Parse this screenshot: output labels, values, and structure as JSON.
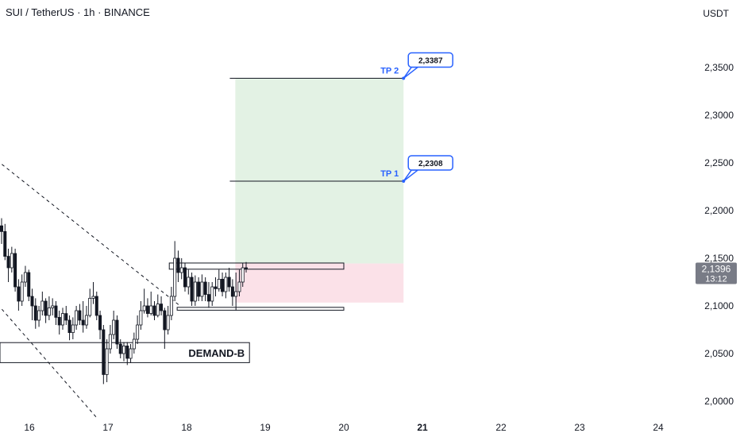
{
  "header": {
    "title": "SUI / TetherUS · 1h · BINANCE",
    "unit": "USDT"
  },
  "colors": {
    "up": "#ffffff",
    "down": "#131722",
    "profit_zone": "#e3f2e4",
    "loss_zone": "#fbe1e8",
    "tp_accent": "#2962ff",
    "price_badge": "#787b86"
  },
  "chart_data": {
    "type": "candlestick",
    "ylim": [
      1.98,
      2.385
    ],
    "y_ticks": [
      "2,0000",
      "2,0500",
      "2,1000",
      "2,1500",
      "2,2000",
      "2,2500",
      "2,3000",
      "2,3500"
    ],
    "y_tick_values": [
      2.0,
      2.05,
      2.1,
      2.15,
      2.2,
      2.25,
      2.3,
      2.35
    ],
    "x_ticks": [
      "16",
      "17",
      "18",
      "19",
      "20",
      "21",
      "22",
      "23",
      "24"
    ],
    "x_bold": "21",
    "current_price": {
      "value": 2.1396,
      "label": "2,1396",
      "countdown": "13:12"
    },
    "targets": [
      {
        "name": "TP 1",
        "value": 2.2308,
        "label": "2,2308"
      },
      {
        "name": "TP 2",
        "value": 2.3387,
        "label": "2,3387"
      }
    ],
    "position": {
      "entry": 2.1445,
      "stop": 2.1035,
      "tp": 2.3387,
      "start_day": 18.62,
      "end_day": 20.76
    },
    "zones": [
      {
        "label": "DEMAND-B",
        "top": 2.0615,
        "bottom": 2.0405,
        "from_day": 15.6,
        "to_day": 18.8
      },
      {
        "label": "",
        "top": 2.145,
        "bottom": 2.1385,
        "from_day": 17.78,
        "to_day": 20.0
      },
      {
        "label": "",
        "top": 2.0985,
        "bottom": 2.0955,
        "from_day": 17.88,
        "to_day": 20.0
      }
    ],
    "channel": [
      {
        "from": [
          15.65,
          2.2485
        ],
        "to": [
          17.91,
          2.1005
        ]
      },
      {
        "from": [
          15.65,
          2.0965
        ],
        "to": [
          16.87,
          1.9815
        ]
      }
    ],
    "candles": [
      [
        2.184,
        2.178,
        2.192,
        2.165
      ],
      [
        2.178,
        2.152,
        2.186,
        2.148
      ],
      [
        2.152,
        2.14,
        2.16,
        2.125
      ],
      [
        2.14,
        2.155,
        2.162,
        2.135
      ],
      [
        2.155,
        2.12,
        2.16,
        2.115
      ],
      [
        2.12,
        2.105,
        2.128,
        2.095
      ],
      [
        2.105,
        2.125,
        2.133,
        2.1
      ],
      [
        2.125,
        2.135,
        2.142,
        2.12
      ],
      [
        2.135,
        2.11,
        2.138,
        2.105
      ],
      [
        2.11,
        2.1,
        2.118,
        2.085
      ],
      [
        2.1,
        2.085,
        2.108,
        2.076
      ],
      [
        2.085,
        2.095,
        2.1,
        2.078
      ],
      [
        2.095,
        2.105,
        2.115,
        2.09
      ],
      [
        2.105,
        2.09,
        2.108,
        2.082
      ],
      [
        2.09,
        2.098,
        2.11,
        2.085
      ],
      [
        2.098,
        2.1,
        2.108,
        2.09
      ],
      [
        2.1,
        2.088,
        2.105,
        2.08
      ],
      [
        2.088,
        2.08,
        2.095,
        2.07
      ],
      [
        2.08,
        2.092,
        2.098,
        2.075
      ],
      [
        2.092,
        2.085,
        2.1,
        2.08
      ],
      [
        2.085,
        2.072,
        2.09,
        2.064
      ],
      [
        2.072,
        2.08,
        2.088,
        2.065
      ],
      [
        2.08,
        2.095,
        2.1,
        2.075
      ],
      [
        2.095,
        2.085,
        2.102,
        2.08
      ],
      [
        2.085,
        2.08,
        2.105,
        2.072
      ],
      [
        2.08,
        2.09,
        2.1,
        2.076
      ],
      [
        2.09,
        2.108,
        2.118,
        2.088
      ],
      [
        2.108,
        2.11,
        2.125,
        2.102
      ],
      [
        2.11,
        2.09,
        2.115,
        2.085
      ],
      [
        2.09,
        2.075,
        2.095,
        2.065
      ],
      [
        2.075,
        2.028,
        2.08,
        2.018
      ],
      [
        2.028,
        2.055,
        2.065,
        2.02
      ],
      [
        2.055,
        2.07,
        2.08,
        2.05
      ],
      [
        2.07,
        2.085,
        2.095,
        2.065
      ],
      [
        2.085,
        2.06,
        2.09,
        2.055
      ],
      [
        2.06,
        2.05,
        2.065,
        2.045
      ],
      [
        2.05,
        2.058,
        2.062,
        2.042
      ],
      [
        2.058,
        2.045,
        2.062,
        2.038
      ],
      [
        2.045,
        2.055,
        2.06,
        2.04
      ],
      [
        2.055,
        2.065,
        2.072,
        2.05
      ],
      [
        2.065,
        2.08,
        2.09,
        2.06
      ],
      [
        2.08,
        2.095,
        2.105,
        2.075
      ],
      [
        2.095,
        2.1,
        2.118,
        2.092
      ],
      [
        2.1,
        2.092,
        2.108,
        2.088
      ],
      [
        2.092,
        2.1,
        2.115,
        2.09
      ],
      [
        2.1,
        2.09,
        2.105,
        2.085
      ],
      [
        2.09,
        2.102,
        2.112,
        2.088
      ],
      [
        2.102,
        2.095,
        2.11,
        2.09
      ],
      [
        2.095,
        2.075,
        2.098,
        2.055
      ],
      [
        2.075,
        2.09,
        2.1,
        2.07
      ],
      [
        2.09,
        2.11,
        2.12,
        2.085
      ],
      [
        2.11,
        2.15,
        2.168,
        2.105
      ],
      [
        2.15,
        2.135,
        2.158,
        2.125
      ],
      [
        2.135,
        2.14,
        2.15,
        2.128
      ],
      [
        2.14,
        2.12,
        2.145,
        2.115
      ],
      [
        2.12,
        2.13,
        2.138,
        2.112
      ],
      [
        2.13,
        2.105,
        2.135,
        2.1
      ],
      [
        2.105,
        2.125,
        2.132,
        2.1
      ],
      [
        2.125,
        2.11,
        2.13,
        2.105
      ],
      [
        2.11,
        2.125,
        2.133,
        2.105
      ],
      [
        2.125,
        2.112,
        2.13,
        2.105
      ],
      [
        2.112,
        2.105,
        2.125,
        2.098
      ],
      [
        2.105,
        2.12,
        2.125,
        2.1
      ],
      [
        2.12,
        2.118,
        2.13,
        2.11
      ],
      [
        2.118,
        2.128,
        2.138,
        2.115
      ],
      [
        2.128,
        2.115,
        2.135,
        2.11
      ],
      [
        2.115,
        2.13,
        2.135,
        2.108
      ],
      [
        2.13,
        2.12,
        2.14,
        2.115
      ],
      [
        2.12,
        2.11,
        2.128,
        2.1
      ],
      [
        2.11,
        2.115,
        2.135,
        2.095
      ],
      [
        2.115,
        2.125,
        2.138,
        2.11
      ],
      [
        2.125,
        2.14,
        2.145,
        2.12
      ],
      [
        2.14,
        2.1396,
        2.146,
        2.135
      ]
    ]
  }
}
